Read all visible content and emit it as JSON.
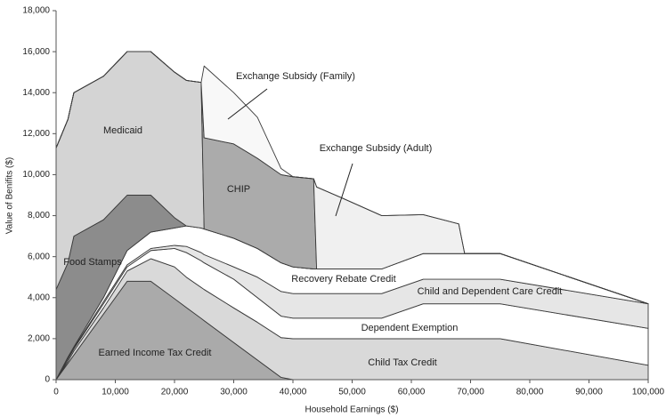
{
  "chart_data": {
    "type": "stacked-area",
    "x_label": "Household Earnings ($)",
    "y_label": "Value of Benifits ($)",
    "x": [
      0,
      2000,
      3000,
      8000,
      12000,
      16000,
      20000,
      22000,
      24500,
      25000,
      30000,
      34000,
      38000,
      40000,
      43500,
      44000,
      48000,
      55000,
      62000,
      68000,
      69000,
      75000,
      100000
    ],
    "series": [
      {
        "name": "Earned Income Tax Credit",
        "color": "#aaaaaa",
        "values": [
          0,
          800,
          1200,
          3200,
          4800,
          4800,
          3950,
          3520,
          2990,
          2880,
          1810,
          960,
          110,
          0,
          0,
          0,
          0,
          0,
          0,
          0,
          0,
          0,
          0
        ]
      },
      {
        "name": "Child Tax Credit",
        "color": "#d9d9d9",
        "values": [
          0,
          100,
          200,
          300,
          500,
          1100,
          1550,
          1480,
          1510,
          1520,
          1690,
          1840,
          1940,
          2000,
          2000,
          2000,
          2000,
          2000,
          2000,
          2000,
          2000,
          2000,
          700
        ]
      },
      {
        "name": "Dependent Exemption",
        "color": "#ffffff",
        "values": [
          0,
          100,
          100,
          200,
          200,
          400,
          900,
          1200,
          1300,
          1300,
          1400,
          1200,
          1050,
          1000,
          1000,
          1000,
          1000,
          1000,
          1700,
          1700,
          1700,
          1700,
          1800
        ]
      },
      {
        "name": "Child and Dependent Care Credit",
        "color": "#e6e6e6",
        "values": [
          0,
          50,
          50,
          100,
          100,
          100,
          150,
          300,
          400,
          400,
          600,
          1000,
          1200,
          1200,
          1200,
          1200,
          1200,
          1200,
          1200,
          1200,
          1200,
          1200,
          1200
        ]
      },
      {
        "name": "Recovery Rebate Credit",
        "color": "#ffffff",
        "values": [
          0,
          50,
          50,
          200,
          700,
          800,
          850,
          1000,
          1200,
          1250,
          1400,
          1400,
          1400,
          1300,
          1200,
          1200,
          1200,
          1200,
          1250,
          1250,
          1250,
          1250,
          0
        ]
      },
      {
        "name": "Food Stamps",
        "color": "#8c8c8c",
        "values": [
          4400,
          4600,
          5400,
          3800,
          2700,
          1800,
          500,
          0,
          0,
          0,
          0,
          0,
          0,
          0,
          0,
          0,
          0,
          0,
          0,
          0,
          0,
          0,
          0
        ]
      },
      {
        "name": "Medicaid",
        "color": "#d4d4d4",
        "values": [
          6900,
          7000,
          7000,
          7000,
          7000,
          7000,
          7100,
          7100,
          7100,
          0,
          0,
          0,
          0,
          0,
          0,
          0,
          0,
          0,
          0,
          0,
          0,
          0,
          0
        ]
      },
      {
        "name": "CHIP",
        "color": "#ababab",
        "values": [
          0,
          0,
          0,
          0,
          0,
          0,
          0,
          0,
          0,
          4450,
          4600,
          4400,
          4300,
          4400,
          4400,
          0,
          0,
          0,
          0,
          0,
          0,
          0,
          0
        ]
      },
      {
        "name": "Exchange Subsidy (Family)",
        "color": "#f0f0f0",
        "values": [
          0,
          0,
          0,
          0,
          0,
          0,
          0,
          0,
          0,
          0,
          0,
          0,
          0,
          0,
          0,
          4000,
          3500,
          2600,
          1900,
          1450,
          0,
          0,
          0
        ]
      },
      {
        "name": "Exchange Subsidy (Adult)",
        "color": "#f8f8f8",
        "values": [
          0,
          0,
          0,
          0,
          0,
          0,
          0,
          0,
          0,
          3500,
          2500,
          2000,
          300,
          0,
          0,
          0,
          0,
          0,
          0,
          0,
          0,
          0,
          0
        ]
      }
    ],
    "xlim": [
      0,
      100000
    ],
    "ylim": [
      0,
      18000
    ],
    "xticks": [
      0,
      {
        "value": 10000,
        "label": "10,000"
      },
      {
        "value": 20000,
        "label": "20,000"
      },
      {
        "value": 30000,
        "label": "30,000"
      },
      {
        "value": 40000,
        "label": "40,000"
      },
      {
        "value": 50000,
        "label": "50,000"
      },
      {
        "value": 60000,
        "label": "60,000"
      },
      {
        "value": 70000,
        "label": "70,000"
      },
      {
        "value": 80000,
        "label": "80,000"
      },
      {
        "value": 90000,
        "label": "90,000"
      },
      {
        "value": 100000,
        "label": "100,000"
      }
    ],
    "yticks": [
      0,
      {
        "value": 2000,
        "label": "2,000"
      },
      {
        "value": 4000,
        "label": "4,000"
      },
      {
        "value": 6000,
        "label": "6,000"
      },
      {
        "value": 8000,
        "label": "8,000"
      },
      {
        "value": 10000,
        "label": "10,000"
      },
      {
        "value": 12000,
        "label": "12,000"
      },
      {
        "value": 14000,
        "label": "14,000"
      },
      {
        "value": 16000,
        "label": "16,000"
      },
      {
        "value": 18000,
        "label": "18,000"
      }
    ],
    "grid": false
  }
}
